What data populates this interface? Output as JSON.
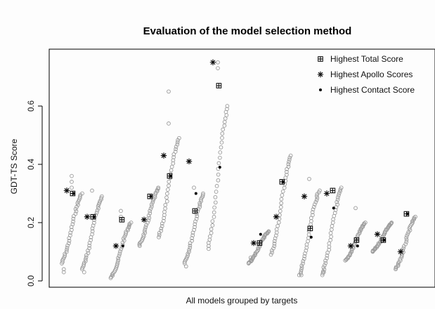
{
  "chart_data": {
    "type": "scatter",
    "title": "Evaluation of the model selection method",
    "xlabel": "All models grouped by targets",
    "ylabel": "GDT-TS Score",
    "ylim": [
      -0.01,
      0.78
    ],
    "yticks": [
      "0.0",
      "0.2",
      "0.4",
      "0.6"
    ],
    "ytick_values": [
      0.0,
      0.2,
      0.4,
      0.6
    ],
    "xticks": [],
    "legend": {
      "position": "top-right",
      "entries": [
        {
          "label": "Highest Total Score",
          "symbol": "boxed-plus"
        },
        {
          "label": "Highest Apollo Scores",
          "symbol": "asterisk"
        },
        {
          "label": "Highest Contact Score",
          "symbol": "dot"
        }
      ]
    },
    "colors": {
      "models": "#9a9a9a",
      "markers": "#000000"
    },
    "groups": [
      {
        "target": 1,
        "min": 0.06,
        "max": 0.3,
        "outliers": [
          0.36,
          0.34,
          0.32,
          0.04,
          0.03
        ],
        "total": 0.3,
        "apollo": 0.31,
        "contact": 0.3
      },
      {
        "target": 2,
        "min": 0.04,
        "max": 0.29,
        "outliers": [
          0.31,
          0.03
        ],
        "total": 0.22,
        "apollo": 0.22,
        "contact": 0.22
      },
      {
        "target": 3,
        "min": 0.01,
        "max": 0.2,
        "outliers": [
          0.24,
          0.22
        ],
        "total": 0.21,
        "apollo": 0.12,
        "contact": 0.12
      },
      {
        "target": 4,
        "min": 0.12,
        "max": 0.32,
        "outliers": [],
        "total": 0.29,
        "apollo": 0.21,
        "contact": 0.29
      },
      {
        "target": 5,
        "min": 0.15,
        "max": 0.49,
        "outliers": [
          0.54,
          0.65
        ],
        "total": 0.36,
        "apollo": 0.43,
        "contact": 0.36
      },
      {
        "target": 6,
        "min": 0.06,
        "max": 0.3,
        "outliers": [
          0.32,
          0.05
        ],
        "total": 0.24,
        "apollo": 0.41,
        "contact": 0.3
      },
      {
        "target": 7,
        "min": 0.11,
        "max": 0.6,
        "outliers": [
          0.75,
          0.73
        ],
        "total": 0.67,
        "apollo": 0.75,
        "contact": 0.39
      },
      {
        "target": 8,
        "min": 0.06,
        "max": 0.17,
        "outliers": [
          0.08
        ],
        "total": 0.13,
        "apollo": 0.13,
        "contact": 0.16
      },
      {
        "target": 9,
        "min": 0.09,
        "max": 0.43,
        "outliers": [],
        "total": 0.34,
        "apollo": 0.22,
        "contact": 0.34
      },
      {
        "target": 10,
        "min": 0.02,
        "max": 0.31,
        "outliers": [
          0.35,
          0.02
        ],
        "total": 0.18,
        "apollo": 0.29,
        "contact": 0.15
      },
      {
        "target": 11,
        "min": 0.02,
        "max": 0.32,
        "outliers": [
          0.03
        ],
        "total": 0.31,
        "apollo": 0.3,
        "contact": 0.25
      },
      {
        "target": 12,
        "min": 0.07,
        "max": 0.2,
        "outliers": [
          0.25
        ],
        "total": 0.14,
        "apollo": 0.12,
        "contact": 0.12
      },
      {
        "target": 13,
        "min": 0.1,
        "max": 0.2,
        "outliers": [],
        "total": 0.14,
        "apollo": 0.16,
        "contact": 0.14
      },
      {
        "target": 14,
        "min": 0.04,
        "max": 0.22,
        "outliers": [],
        "total": 0.23,
        "apollo": 0.1,
        "contact": 0.23
      }
    ]
  }
}
